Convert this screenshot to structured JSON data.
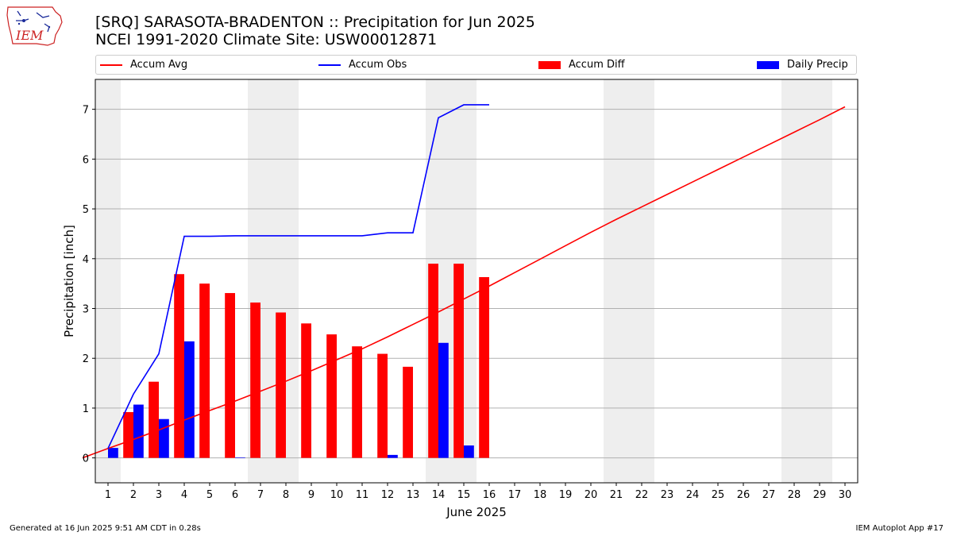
{
  "header": {
    "title_line1": "[SRQ] SARASOTA-BRADENTON :: Precipitation for Jun 2025",
    "title_line2": "NCEI 1991-2020 Climate Site: USW00012871"
  },
  "logo": {
    "text": "IEM"
  },
  "footer": {
    "generated": "Generated at 16 Jun 2025 9:51 AM CDT in 0.28s",
    "app": "IEM Autoplot App #17"
  },
  "colors": {
    "avg": "#ff0000",
    "obs": "#0000ff",
    "diff": "#ff0000",
    "daily": "#0000ff",
    "weekend": "#eeeeee",
    "grid": "#b0b0b0"
  },
  "chart_data": {
    "type": "bar",
    "xlabel": "June 2025",
    "ylabel": "Precipitation [inch]",
    "xlim": [
      0.5,
      30.5
    ],
    "ylim": [
      -0.5,
      7.6
    ],
    "x_ticks": [
      1,
      2,
      3,
      4,
      5,
      6,
      7,
      8,
      9,
      10,
      11,
      12,
      13,
      14,
      15,
      16,
      17,
      18,
      19,
      20,
      21,
      22,
      23,
      24,
      25,
      26,
      27,
      28,
      29,
      30
    ],
    "y_ticks": [
      0,
      1,
      2,
      3,
      4,
      5,
      6,
      7
    ],
    "grid": "horizontal",
    "legend_position": "top",
    "shaded_weekends": [
      [
        0.5,
        1.5
      ],
      [
        6.5,
        8.5
      ],
      [
        13.5,
        15.5
      ],
      [
        20.5,
        22.5
      ],
      [
        27.5,
        29.5
      ]
    ],
    "series": [
      {
        "name": "Accum Avg",
        "kind": "line",
        "x": [
          0,
          1,
          2,
          3,
          4,
          5,
          6,
          7,
          8,
          9,
          10,
          11,
          12,
          13,
          14,
          15,
          16,
          17,
          18,
          19,
          20,
          21,
          22,
          23,
          24,
          25,
          26,
          27,
          28,
          29,
          30
        ],
        "values": [
          0.0,
          0.19,
          0.37,
          0.56,
          0.76,
          0.95,
          1.14,
          1.34,
          1.54,
          1.75,
          1.97,
          2.19,
          2.43,
          2.68,
          2.93,
          3.19,
          3.45,
          3.72,
          3.99,
          4.26,
          4.53,
          4.79,
          5.04,
          5.29,
          5.54,
          5.79,
          6.04,
          6.29,
          6.54,
          6.79,
          7.05
        ]
      },
      {
        "name": "Accum Obs",
        "kind": "line",
        "x": [
          1,
          2,
          3,
          4,
          5,
          6,
          7,
          8,
          9,
          10,
          11,
          12,
          13,
          14,
          15,
          16
        ],
        "values": [
          0.19,
          1.28,
          2.09,
          4.45,
          4.45,
          4.46,
          4.46,
          4.46,
          4.46,
          4.46,
          4.46,
          4.52,
          4.52,
          6.83,
          7.09,
          7.09
        ]
      },
      {
        "name": "Accum Diff",
        "kind": "bar",
        "x": [
          1,
          2,
          3,
          4,
          5,
          6,
          7,
          8,
          9,
          10,
          11,
          12,
          13,
          14,
          15,
          16
        ],
        "values": [
          0.0,
          0.92,
          1.53,
          3.69,
          3.5,
          3.31,
          3.12,
          2.92,
          2.7,
          2.48,
          2.24,
          2.09,
          1.83,
          3.9,
          3.9,
          3.63
        ]
      },
      {
        "name": "Daily Precip",
        "kind": "bar",
        "x": [
          1,
          2,
          3,
          4,
          5,
          6,
          7,
          8,
          9,
          10,
          11,
          12,
          13,
          14,
          15,
          16
        ],
        "values": [
          0.2,
          1.07,
          0.78,
          2.34,
          0.0,
          0.01,
          0.0,
          0.0,
          0.0,
          0.0,
          0.0,
          0.06,
          0.0,
          2.31,
          0.25,
          0.0
        ]
      }
    ]
  }
}
